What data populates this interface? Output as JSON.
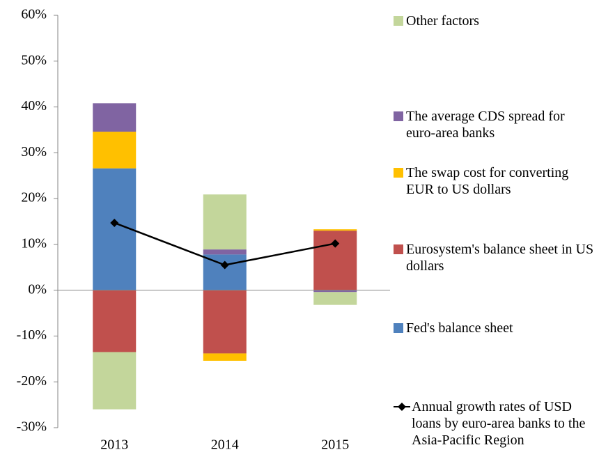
{
  "chart_data": {
    "type": "bar",
    "categories": [
      "2013",
      "2014",
      "2015"
    ],
    "series": [
      {
        "name": "Fed's balance sheet",
        "color": "#4f81bd",
        "values": [
          26.6,
          7.8,
          0
        ]
      },
      {
        "name": "Eurosystem's balance sheet in US dollars",
        "color": "#c0504d",
        "values": [
          -13.5,
          -13.8,
          13
        ]
      },
      {
        "name": "The swap cost for converting EUR to US dollars",
        "color": "#ffc000",
        "values": [
          8,
          -1.6,
          0.3
        ]
      },
      {
        "name": "The average CDS spread for euro-area banks",
        "color": "#8064a2",
        "values": [
          6.2,
          1.1,
          -0.4
        ]
      },
      {
        "name": "Other factors",
        "color": "#c3d69b",
        "values": [
          -12.5,
          12,
          -2.8
        ]
      },
      {
        "name": "Annual growth rates of USD loans by euro-area banks to the Asia-Pacific Region",
        "color": "#000000",
        "type": "line",
        "values": [
          14.7,
          5.5,
          10.2
        ]
      }
    ],
    "ylim": [
      -30,
      60
    ],
    "yticks": [
      {
        "value": -30,
        "label": "-30%"
      },
      {
        "value": -20,
        "label": "-20%"
      },
      {
        "value": -10,
        "label": "-10%"
      },
      {
        "value": 0,
        "label": "0%"
      },
      {
        "value": 10,
        "label": "10%"
      },
      {
        "value": 20,
        "label": "20%"
      },
      {
        "value": 30,
        "label": "30%"
      },
      {
        "value": 40,
        "label": "40%"
      },
      {
        "value": 50,
        "label": "50%"
      },
      {
        "value": 60,
        "label": "60%"
      }
    ],
    "legend": "right"
  }
}
